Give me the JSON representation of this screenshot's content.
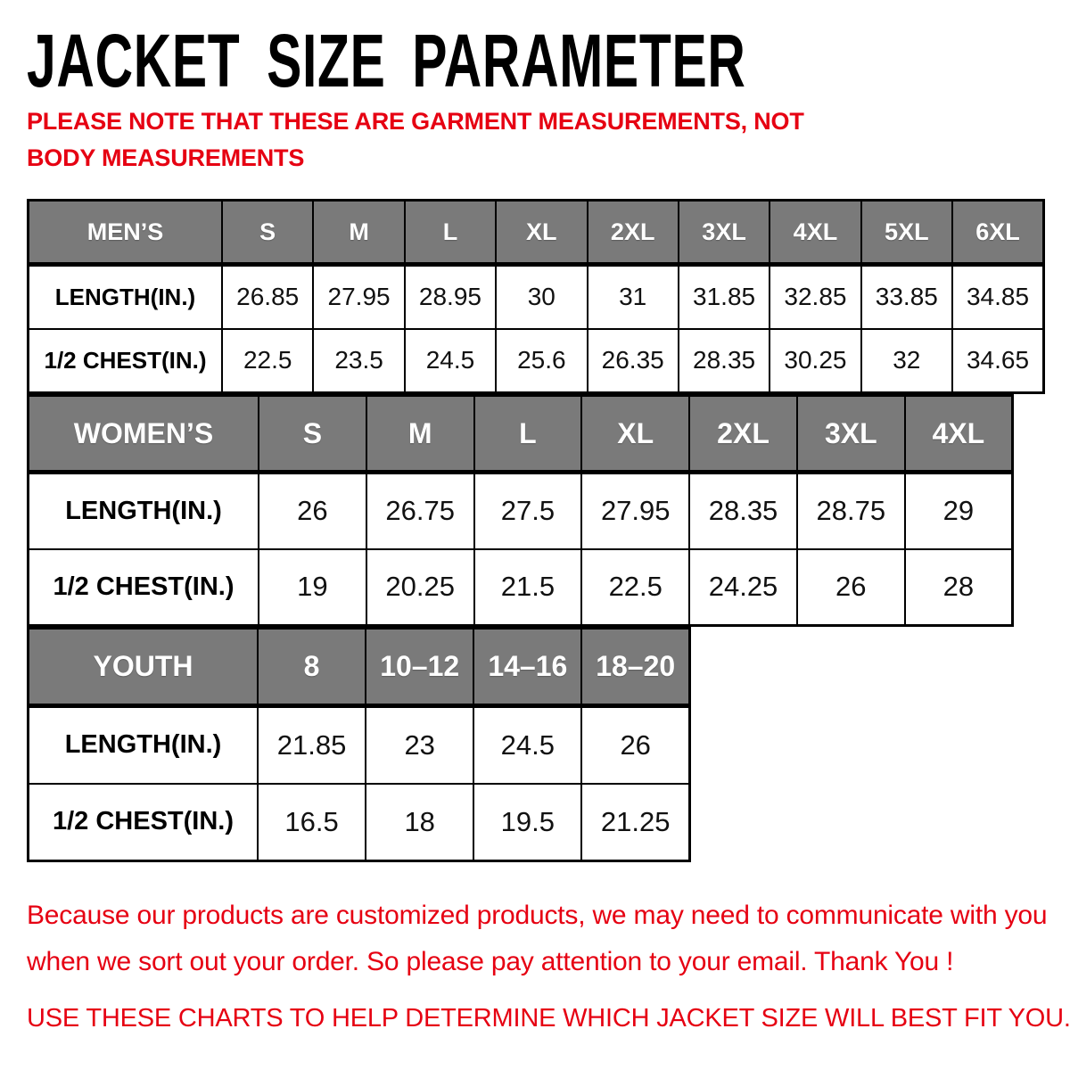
{
  "title": "JACKET SIZE PARAMETER",
  "note": "PLEASE NOTE THAT THESE ARE GARMENT MEASUREMENTS, NOT BODY MEASUREMENTS",
  "colors": {
    "accent_red": "#e60012",
    "header_gray": "#7a7a7a",
    "border_black": "#000000",
    "header_text": "#ffffff"
  },
  "tables": [
    {
      "id": "mens",
      "name": "MEN’S",
      "sizes": [
        "S",
        "M",
        "L",
        "XL",
        "2XL",
        "3XL",
        "4XL",
        "5XL",
        "6XL"
      ],
      "rows": [
        {
          "label": "LENGTH(IN.)",
          "values": [
            "26.85",
            "27.95",
            "28.95",
            "30",
            "31",
            "31.85",
            "32.85",
            "33.85",
            "34.85"
          ]
        },
        {
          "label": "1/2 CHEST(IN.)",
          "values": [
            "22.5",
            "23.5",
            "24.5",
            "25.6",
            "26.35",
            "28.35",
            "30.25",
            "32",
            "34.65"
          ]
        }
      ]
    },
    {
      "id": "womens",
      "name": "WOMEN’S",
      "sizes": [
        "S",
        "M",
        "L",
        "XL",
        "2XL",
        "3XL",
        "4XL"
      ],
      "rows": [
        {
          "label": "LENGTH(IN.)",
          "values": [
            "26",
            "26.75",
            "27.5",
            "27.95",
            "28.35",
            "28.75",
            "29"
          ]
        },
        {
          "label": "1/2 CHEST(IN.)",
          "values": [
            "19",
            "20.25",
            "21.5",
            "22.5",
            "24.25",
            "26",
            "28"
          ]
        }
      ]
    },
    {
      "id": "youth",
      "name": "YOUTH",
      "sizes": [
        "8",
        "10–12",
        "14–16",
        "18–20"
      ],
      "rows": [
        {
          "label": "LENGTH(IN.)",
          "values": [
            "21.85",
            "23",
            "24.5",
            "26"
          ]
        },
        {
          "label": "1/2 CHEST(IN.)",
          "values": [
            "16.5",
            "18",
            "19.5",
            "21.25"
          ]
        }
      ]
    }
  ],
  "chart_data": [
    {
      "type": "table",
      "title": "MEN’S",
      "columns": [
        "MEN’S",
        "S",
        "M",
        "L",
        "XL",
        "2XL",
        "3XL",
        "4XL",
        "5XL",
        "6XL"
      ],
      "rows": [
        [
          "LENGTH(IN.)",
          "26.85",
          "27.95",
          "28.95",
          "30",
          "31",
          "31.85",
          "32.85",
          "33.85",
          "34.85"
        ],
        [
          "1/2 CHEST(IN.)",
          "22.5",
          "23.5",
          "24.5",
          "25.6",
          "26.35",
          "28.35",
          "30.25",
          "32",
          "34.65"
        ]
      ]
    },
    {
      "type": "table",
      "title": "WOMEN’S",
      "columns": [
        "WOMEN’S",
        "S",
        "M",
        "L",
        "XL",
        "2XL",
        "3XL",
        "4XL"
      ],
      "rows": [
        [
          "LENGTH(IN.)",
          "26",
          "26.75",
          "27.5",
          "27.95",
          "28.35",
          "28.75",
          "29"
        ],
        [
          "1/2 CHEST(IN.)",
          "19",
          "20.25",
          "21.5",
          "22.5",
          "24.25",
          "26",
          "28"
        ]
      ]
    },
    {
      "type": "table",
      "title": "YOUTH",
      "columns": [
        "YOUTH",
        "8",
        "10–12",
        "14–16",
        "18–20"
      ],
      "rows": [
        [
          "LENGTH(IN.)",
          "21.85",
          "23",
          "24.5",
          "26"
        ],
        [
          "1/2 CHEST(IN.)",
          "16.5",
          "18",
          "19.5",
          "21.25"
        ]
      ]
    }
  ],
  "footer": {
    "line1": "Because our products are customized products, we may need to communicate with you when we sort out your order. So please pay attention to your email. Thank You !",
    "line2": "USE THESE CHARTS TO HELP DETERMINE WHICH JACKET SIZE WILL BEST FIT YOU."
  }
}
